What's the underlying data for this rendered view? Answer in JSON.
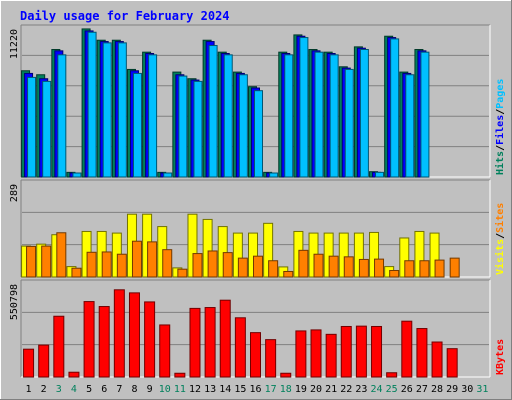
{
  "chart_data": {
    "type": "bar",
    "title": "Daily usage for February 2024",
    "colors": {
      "background": "#c0c0c0",
      "title": "#0000ff",
      "hits": "#00805c",
      "files": "#0000ff",
      "pages": "#00c0ff",
      "visits": "#ffff00",
      "sites": "#ff8000",
      "kbytes": "#ff0000",
      "weekend_day": "#00805c",
      "weekday": "#000000"
    },
    "legend_top": [
      {
        "label": "Hits",
        "color": "#00805c"
      },
      {
        "label": "/",
        "color": "#000000"
      },
      {
        "label": "Files",
        "color": "#0000ff"
      },
      {
        "label": "/",
        "color": "#000000"
      },
      {
        "label": "Pages",
        "color": "#00c0ff"
      }
    ],
    "legend_mid": [
      {
        "label": "Visits",
        "color": "#ffff00"
      },
      {
        "label": "/",
        "color": "#000000"
      },
      {
        "label": "Sites",
        "color": "#ff8000"
      }
    ],
    "legend_bottom": [
      {
        "label": "KBytes",
        "color": "#ff0000"
      }
    ],
    "days": [
      "1",
      "2",
      "3",
      "4",
      "5",
      "6",
      "7",
      "8",
      "9",
      "10",
      "11",
      "12",
      "13",
      "14",
      "15",
      "16",
      "17",
      "18",
      "19",
      "20",
      "21",
      "22",
      "23",
      "24",
      "25",
      "26",
      "27",
      "28",
      "29",
      "30",
      "31"
    ],
    "weekend_days": [
      3,
      4,
      10,
      11,
      17,
      18,
      24,
      25,
      31
    ],
    "panels": {
      "usage": {
        "ymax_label": "11220",
        "ymax": 11220,
        "series": [
          {
            "name": "Hits",
            "values": [
              8000,
              7700,
              9600,
              350,
              11150,
              10300,
              10300,
              8100,
              9400,
              350,
              7900,
              7400,
              10300,
              9400,
              7900,
              6800,
              350,
              9400,
              10700,
              9600,
              9400,
              8300,
              9800,
              400,
              10600,
              7900,
              9600,
              0,
              0,
              0,
              0
            ]
          },
          {
            "name": "Files",
            "values": [
              7800,
              7400,
              9500,
              300,
              11000,
              10200,
              10200,
              8000,
              9300,
              300,
              7700,
              7300,
              10200,
              9300,
              7800,
              6700,
              300,
              9300,
              10600,
              9500,
              9300,
              8200,
              9700,
              350,
              10500,
              7800,
              9500,
              0,
              0,
              0,
              0
            ]
          },
          {
            "name": "Pages",
            "values": [
              7500,
              7200,
              9200,
              300,
              10900,
              10100,
              10100,
              7800,
              9200,
              300,
              7600,
              7200,
              9900,
              9200,
              7700,
              6500,
              300,
              9200,
              10500,
              9400,
              9200,
              8100,
              9600,
              350,
              10400,
              7700,
              9400,
              0,
              0,
              0,
              0
            ]
          }
        ]
      },
      "visitors": {
        "ymax_label": "289",
        "ymax": 289,
        "series": [
          {
            "name": "Visits",
            "values": [
              95,
              101,
              130,
              32,
              140,
              140,
              135,
              193,
              193,
              155,
              28,
              193,
              177,
              155,
              135,
              135,
              165,
              31,
              140,
              135,
              135,
              135,
              135,
              137,
              32,
              120,
              140,
              135,
              0,
              0,
              0
            ]
          },
          {
            "name": "Sites",
            "values": [
              94,
              95,
              136,
              27,
              76,
              77,
              70,
              110,
              108,
              84,
              24,
              72,
              80,
              75,
              58,
              64,
              50,
              17,
              82,
              70,
              64,
              62,
              54,
              55,
              20,
              50,
              50,
              52,
              58,
              0,
              0
            ]
          }
        ]
      },
      "volume": {
        "ymax_label": "550798",
        "ymax": 550798,
        "series": [
          {
            "name": "KBytes",
            "values": [
              163000,
              187000,
              356000,
              28000,
              442000,
              413000,
              511000,
              493000,
              440000,
              305000,
              22000,
              402000,
              407000,
              450000,
              347000,
              260000,
              219000,
              22000,
              270000,
              276000,
              250000,
              296000,
              298000,
              296000,
              25000,
              327000,
              284000,
              205000,
              166000,
              0,
              0
            ]
          }
        ]
      }
    }
  }
}
